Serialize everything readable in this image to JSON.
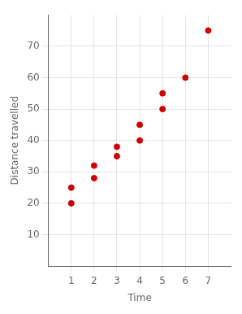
{
  "chart_data": {
    "type": "scatter",
    "x": [
      1,
      1,
      2,
      2,
      3,
      3,
      4,
      4,
      5,
      5,
      6,
      7
    ],
    "values": [
      20,
      25,
      28,
      32,
      35,
      38,
      40,
      45,
      50,
      55,
      60,
      75
    ],
    "color": "#cc0000",
    "xlabel": "Time",
    "ylabel": "Distance travelled",
    "xlim": [
      0,
      8
    ],
    "ylim": [
      0,
      80
    ],
    "xticks": [
      1,
      2,
      3,
      4,
      5,
      6,
      7
    ],
    "yticks": [
      10,
      20,
      30,
      40,
      50,
      60,
      70
    ],
    "grid": true
  }
}
